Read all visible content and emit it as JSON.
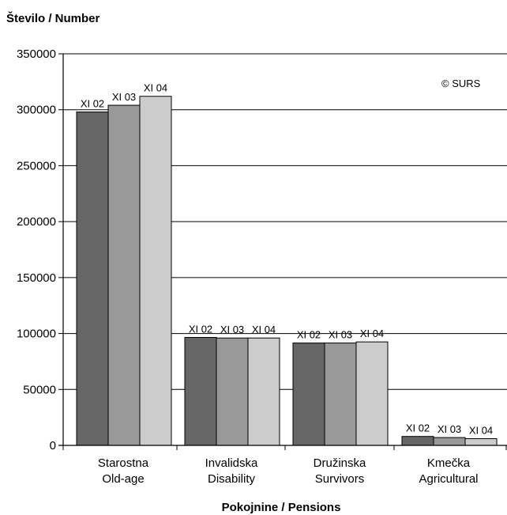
{
  "chart_data": {
    "type": "bar",
    "ylabel": "Število / Number",
    "xlabel": "Pokojnine / Pensions",
    "copyright": "© SURS",
    "ylim": [
      0,
      350000
    ],
    "yticks": [
      "0",
      "50000",
      "100000",
      "150000",
      "200000",
      "250000",
      "300000",
      "350000"
    ],
    "grid": true,
    "categories": [
      {
        "line1": "Starostna",
        "line2": "Old-age"
      },
      {
        "line1": "Invalidska",
        "line2": "Disability"
      },
      {
        "line1": "Družinska",
        "line2": "Survivors"
      },
      {
        "line1": "Kmečka",
        "line2": "Agricultural"
      }
    ],
    "series": [
      {
        "name": "XI 02",
        "color": "#666666",
        "values": [
          298000,
          96500,
          91500,
          8000
        ]
      },
      {
        "name": "XI 03",
        "color": "#999999",
        "values": [
          304000,
          96000,
          91500,
          7000
        ]
      },
      {
        "name": "XI 04",
        "color": "#cccccc",
        "values": [
          312000,
          96000,
          92500,
          6000
        ]
      }
    ]
  }
}
